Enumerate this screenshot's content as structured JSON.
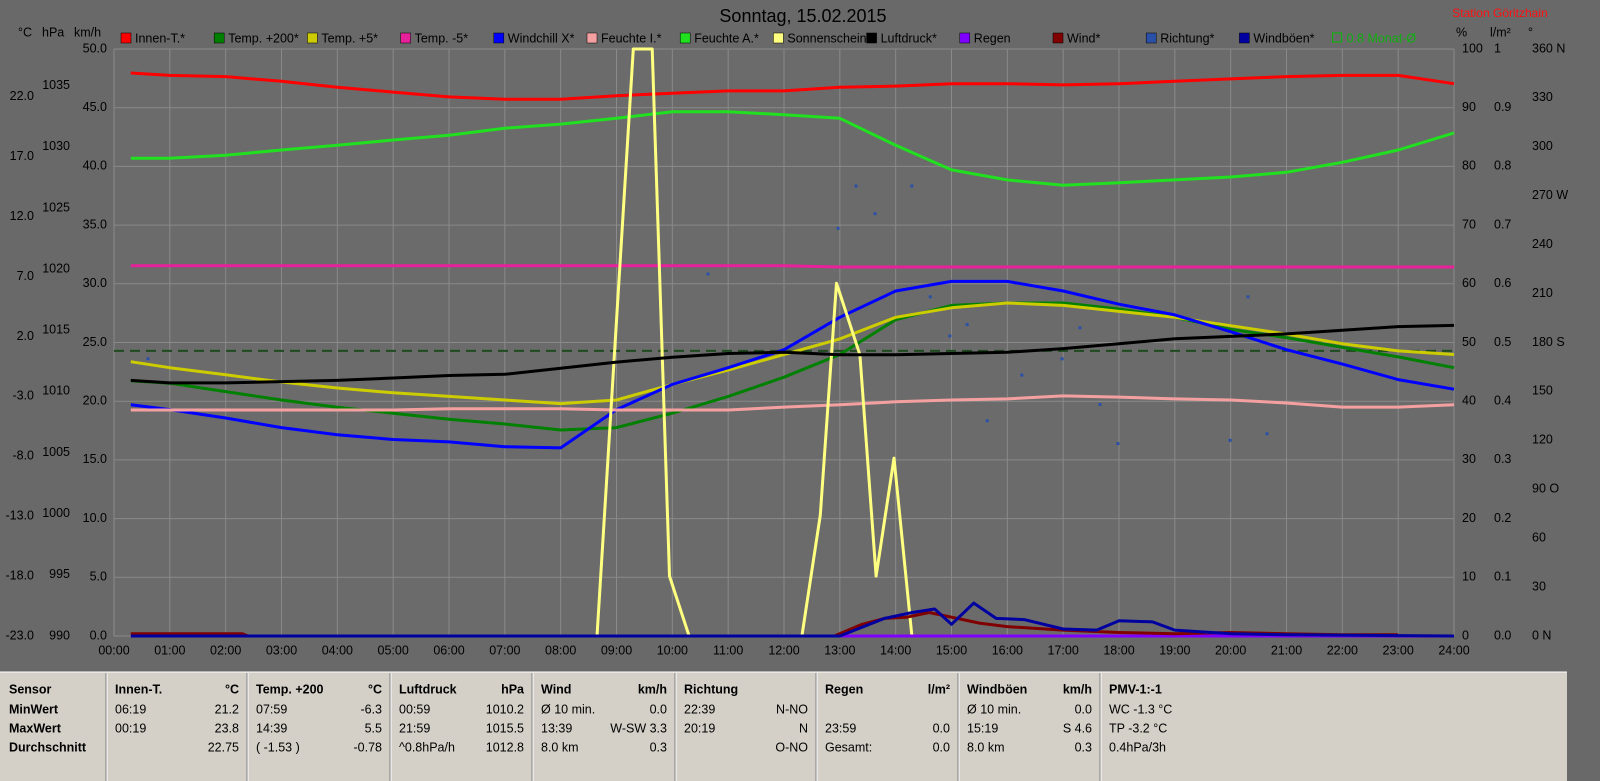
{
  "chart_data": {
    "type": "line",
    "title": "Sonntag, 15.02.2015",
    "station": "Station Göritzhain",
    "xlim": [
      0,
      24
    ],
    "xticks": [
      {
        "value": 0,
        "label": "00:00"
      },
      {
        "value": 1,
        "label": "01:00"
      },
      {
        "value": 2,
        "label": "02:00"
      },
      {
        "value": 3,
        "label": "03:00"
      },
      {
        "value": 4,
        "label": "04:00"
      },
      {
        "value": 5,
        "label": "05:00"
      },
      {
        "value": 6,
        "label": "06:00"
      },
      {
        "value": 7,
        "label": "07:00"
      },
      {
        "value": 8,
        "label": "08:00"
      },
      {
        "value": 9,
        "label": "09:00"
      },
      {
        "value": 10,
        "label": "10:00"
      },
      {
        "value": 11,
        "label": "11:00"
      },
      {
        "value": 12,
        "label": "12:00"
      },
      {
        "value": 13,
        "label": "13:00"
      },
      {
        "value": 14,
        "label": "14:00"
      },
      {
        "value": 15,
        "label": "15:00"
      },
      {
        "value": 16,
        "label": "16:00"
      },
      {
        "value": 17,
        "label": "17:00"
      },
      {
        "value": 18,
        "label": "18:00"
      },
      {
        "value": 19,
        "label": "19:00"
      },
      {
        "value": 20,
        "label": "20:00"
      },
      {
        "value": 21,
        "label": "21:00"
      },
      {
        "value": 22,
        "label": "22:00"
      },
      {
        "value": 23,
        "label": "23:00"
      },
      {
        "value": 24,
        "label": "24:00"
      }
    ],
    "grid": true,
    "y_axes_left": [
      {
        "unit": "°C",
        "lim": [
          -23,
          26
        ],
        "ticks": [
          {
            "value": -23,
            "label": "-23.0"
          },
          {
            "value": -18,
            "label": "-18.0"
          },
          {
            "value": -13,
            "label": "-13.0"
          },
          {
            "value": -8,
            "label": "-8.0"
          },
          {
            "value": -3,
            "label": "-3.0"
          },
          {
            "value": 2,
            "label": "2.0"
          },
          {
            "value": 7,
            "label": "7.0"
          },
          {
            "value": 12,
            "label": "12.0"
          },
          {
            "value": 17,
            "label": "17.0"
          },
          {
            "value": 22,
            "label": "22.0"
          }
        ]
      },
      {
        "unit": "hPa",
        "lim": [
          990,
          1038
        ],
        "ticks": [
          990,
          995,
          1000,
          1005,
          1010,
          1015,
          1020,
          1025,
          1030,
          1035
        ]
      },
      {
        "unit": "km/h",
        "lim": [
          0,
          50
        ],
        "grid": true,
        "ticks": [
          {
            "value": 0,
            "label": "0.0"
          },
          {
            "value": 5,
            "label": "5.0"
          },
          {
            "value": 10,
            "label": "10.0"
          },
          {
            "value": 15,
            "label": "15.0"
          },
          {
            "value": 20,
            "label": "20.0"
          },
          {
            "value": 25,
            "label": "25.0"
          },
          {
            "value": 30,
            "label": "30.0"
          },
          {
            "value": 35,
            "label": "35.0"
          },
          {
            "value": 40,
            "label": "40.0"
          },
          {
            "value": 45,
            "label": "45.0"
          },
          {
            "value": 50,
            "label": "50.0"
          }
        ]
      }
    ],
    "y_axes_right": [
      {
        "unit": "%",
        "lim": [
          0,
          100
        ],
        "ticks": [
          0,
          10,
          20,
          30,
          40,
          50,
          60,
          70,
          80,
          90,
          100
        ]
      },
      {
        "unit": "l/m²",
        "lim": [
          0,
          1
        ],
        "ticks": [
          {
            "value": 0,
            "label": "0.0"
          },
          0.1,
          0.2,
          0.3,
          0.4,
          0.5,
          0.6,
          0.7,
          0.8,
          0.9,
          1
        ]
      },
      {
        "unit": "°",
        "lim": [
          0,
          360
        ],
        "ticks": [
          {
            "value": 0,
            "label": "0 N"
          },
          30,
          60,
          {
            "value": 90,
            "label": "90 O"
          },
          120,
          150,
          {
            "value": 180,
            "label": "180 S"
          },
          210,
          240,
          {
            "value": 270,
            "label": "270 W"
          },
          300,
          330,
          {
            "value": 360,
            "label": "360 N"
          }
        ]
      }
    ],
    "x": [
      0.3,
      1,
      2,
      3,
      4,
      5,
      6,
      7,
      8,
      9,
      10,
      11,
      12,
      13,
      14,
      15,
      16,
      17,
      18,
      19,
      20,
      21,
      22,
      23,
      24
    ],
    "series": [
      {
        "name": "Innen-T.*",
        "color": "#ff0000",
        "axis": "°C",
        "values": [
          24.0,
          23.8,
          23.7,
          23.3,
          22.8,
          22.4,
          22.0,
          21.8,
          21.8,
          22.1,
          22.3,
          22.5,
          22.5,
          22.8,
          22.9,
          23.1,
          23.1,
          23.0,
          23.1,
          23.3,
          23.5,
          23.7,
          23.8,
          23.8,
          23.1
        ]
      },
      {
        "name": "Temp. +200*",
        "color": "#008000",
        "axis": "°C",
        "values": [
          -1.7,
          -1.9,
          -2.6,
          -3.3,
          -3.9,
          -4.4,
          -4.9,
          -5.3,
          -5.8,
          -5.6,
          -4.4,
          -3.0,
          -1.4,
          0.5,
          3.4,
          4.6,
          4.8,
          4.8,
          4.3,
          3.6,
          2.6,
          1.9,
          1.1,
          0.3,
          -0.6
        ]
      },
      {
        "name": "Temp. +5*",
        "color": "#cccc00",
        "axis": "°C",
        "values": [
          -0.1,
          -0.6,
          -1.2,
          -1.8,
          -2.3,
          -2.7,
          -3.0,
          -3.3,
          -3.6,
          -3.3,
          -2.0,
          -0.8,
          0.5,
          1.8,
          3.6,
          4.4,
          4.8,
          4.6,
          4.1,
          3.6,
          2.9,
          2.2,
          1.4,
          0.8,
          0.5
        ]
      },
      {
        "name": "Temp. -5*",
        "color": "#e8209a",
        "axis": "°C",
        "values": [
          7.9,
          7.9,
          7.9,
          7.9,
          7.9,
          7.9,
          7.9,
          7.9,
          7.9,
          7.9,
          7.9,
          7.9,
          7.9,
          7.8,
          7.8,
          7.8,
          7.8,
          7.8,
          7.8,
          7.8,
          7.8,
          7.8,
          7.8,
          7.8,
          7.8
        ]
      },
      {
        "name": "Windchill X*",
        "color": "#0000ff",
        "axis": "°C",
        "values": [
          -3.7,
          -4.1,
          -4.8,
          -5.6,
          -6.2,
          -6.6,
          -6.8,
          -7.2,
          -7.3,
          -4.1,
          -2.0,
          -0.6,
          0.9,
          3.6,
          5.8,
          6.6,
          6.6,
          5.8,
          4.7,
          3.8,
          2.4,
          0.9,
          -0.3,
          -1.6,
          -2.4
        ]
      },
      {
        "name": "Feuchte I.*",
        "color": "#f4a0a0",
        "axis": "%",
        "values": [
          38.5,
          38.5,
          38.5,
          38.5,
          38.5,
          38.5,
          38.7,
          38.7,
          38.7,
          38.5,
          38.5,
          38.5,
          39.0,
          39.4,
          39.9,
          40.2,
          40.4,
          40.9,
          40.7,
          40.4,
          40.2,
          39.7,
          39.0,
          39.0,
          39.4
        ]
      },
      {
        "name": "Feuchte A.*",
        "color": "#20e020",
        "axis": "%",
        "values": [
          81.4,
          81.4,
          81.9,
          82.8,
          83.6,
          84.5,
          85.3,
          86.5,
          87.2,
          88.2,
          89.3,
          89.3,
          88.8,
          88.2,
          83.6,
          79.4,
          77.7,
          76.8,
          77.2,
          77.7,
          78.2,
          79.0,
          80.7,
          82.8,
          85.7
        ]
      },
      {
        "name": "Sonnenschein",
        "color": "#ffff80",
        "axis": "%",
        "x": [
          0.3,
          8.65,
          9.3,
          9.64,
          9.95,
          10.3,
          12.32,
          12.65,
          12.94,
          13.36,
          13.65,
          13.97,
          14.29,
          24
        ],
        "values": [
          0,
          0,
          100,
          100,
          10.2,
          0,
          0,
          20.6,
          60.1,
          47.9,
          10.2,
          30.3,
          0,
          0
        ]
      },
      {
        "name": "Luftdruck*",
        "color": "#000000",
        "axis": "hPa",
        "values": [
          1010.9,
          1010.7,
          1010.7,
          1010.8,
          1010.9,
          1011.1,
          1011.3,
          1011.4,
          1011.9,
          1012.4,
          1012.8,
          1013.1,
          1013.2,
          1013.0,
          1013.0,
          1013.1,
          1013.2,
          1013.5,
          1013.9,
          1014.3,
          1014.5,
          1014.7,
          1015.0,
          1015.3,
          1015.4
        ]
      },
      {
        "name": "Regen",
        "color": "#8000ff",
        "axis": "l/m²",
        "x": [
          0.3,
          24
        ],
        "values": [
          0,
          0
        ]
      },
      {
        "name": "Wind*",
        "color": "#800000",
        "axis": "km/h",
        "x": [
          0.3,
          2.3,
          2.4,
          12.9,
          13.4,
          13.8,
          14.2,
          14.6,
          15,
          15.5,
          16,
          17,
          18,
          19,
          20,
          21,
          22,
          23
        ],
        "values": [
          0.2,
          0.2,
          0,
          0,
          1,
          1.5,
          1.6,
          2,
          1.6,
          1.1,
          0.8,
          0.5,
          0.3,
          0.2,
          0.3,
          0.2,
          0.1,
          0.1
        ]
      },
      {
        "name": "Richtung*",
        "color": "#2a50a8",
        "axis": "°",
        "type": "scatter",
        "x": [
          0.61,
          10.64,
          12.97,
          13.29,
          13.63,
          14.29,
          14.62,
          14.97,
          15.28,
          15.64,
          16.26,
          16.98,
          17.3,
          17.66,
          17.98,
          19.99,
          20.31,
          20.65
        ],
        "values": [
          170,
          222,
          250,
          276,
          259,
          276,
          208,
          184,
          191,
          132,
          160,
          170,
          189,
          142,
          118,
          120,
          208,
          124
        ]
      },
      {
        "name": "Windböen*",
        "color": "#0000a0",
        "axis": "km/h",
        "x": [
          0.3,
          13.0,
          13.8,
          14.3,
          14.7,
          15.0,
          15.4,
          15.8,
          16.3,
          17,
          17.6,
          18,
          18.6,
          19,
          20,
          21,
          24
        ],
        "values": [
          0,
          0,
          1.5,
          2,
          2.3,
          1,
          2.8,
          1.5,
          1.4,
          0.6,
          0.5,
          1.3,
          1.2,
          0.5,
          0.2,
          0.1,
          0
        ]
      }
    ],
    "monthly_mean": {
      "label": "0.8 Monat-Ø",
      "value": 0.8,
      "axis": "°C",
      "color": "#10b010",
      "line_color": "#1f4a1f"
    }
  },
  "table": {
    "columns": [
      {
        "name": "Sensor"
      },
      {
        "name": "Innen-T.",
        "unit": "°C"
      },
      {
        "name": "Temp. +200",
        "unit": "°C"
      },
      {
        "name": "Luftdruck",
        "unit": "hPa"
      },
      {
        "name": "Wind",
        "unit": "km/h"
      },
      {
        "name": "Richtung"
      },
      {
        "name": "Regen",
        "unit": "l/m²"
      },
      {
        "name": "Windböen",
        "unit": "km/h"
      },
      {
        "name": "PMV-1:-1"
      }
    ],
    "rows": [
      {
        "label": "MinWert",
        "cells": [
          [
            "06:19",
            "21.2"
          ],
          [
            "07:59",
            "-6.3"
          ],
          [
            "00:59",
            "1010.2"
          ],
          [
            "Ø 10 min.",
            "0.0"
          ],
          [
            "22:39",
            "N-NO"
          ],
          [
            null,
            null
          ],
          [
            "Ø 10 min.",
            "0.0"
          ],
          [
            "WC -1.3 °C"
          ]
        ]
      },
      {
        "label": "MaxWert",
        "cells": [
          [
            "00:19",
            "23.8"
          ],
          [
            "14:39",
            "5.5"
          ],
          [
            "21:59",
            "1015.5"
          ],
          [
            "13:39",
            "W-SW 3.3"
          ],
          [
            "20:19",
            "N"
          ],
          [
            "23:59",
            "0.0"
          ],
          [
            "15:19",
            "S 4.6"
          ],
          [
            "TP -3.2 °C"
          ]
        ]
      },
      {
        "label": "Durchschnitt",
        "cells": [
          [
            null,
            "22.75"
          ],
          [
            "( -1.53 )",
            "-0.78"
          ],
          [
            "^0.8hPa/h",
            "1012.8"
          ],
          [
            "8.0 km",
            "0.3"
          ],
          [
            null,
            "O-NO"
          ],
          [
            "Gesamt:",
            "0.0"
          ],
          [
            "8.0 km",
            "0.3"
          ],
          [
            "0.4hPa/3h"
          ]
        ]
      }
    ]
  }
}
